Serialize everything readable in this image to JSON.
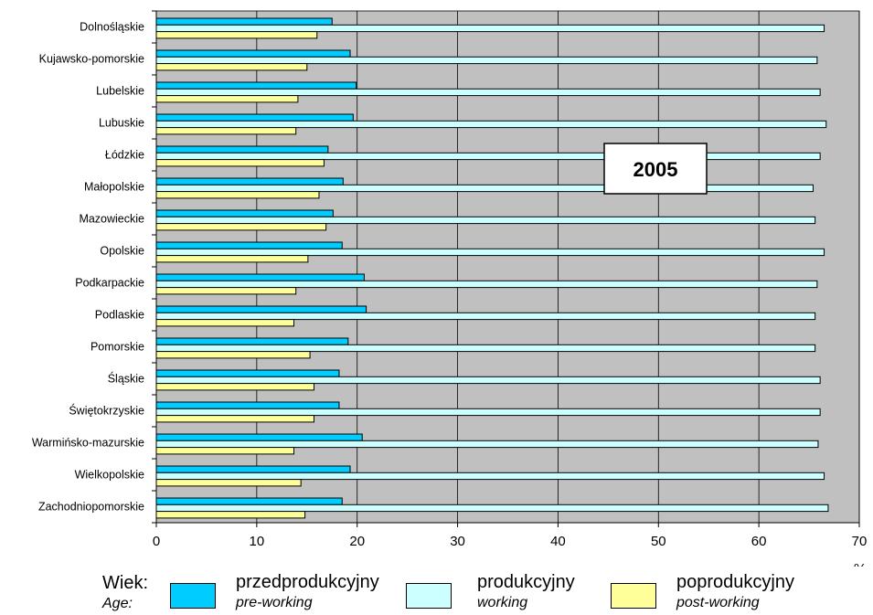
{
  "chart_data": {
    "type": "bar",
    "orientation": "horizontal",
    "categories": [
      "Dolnośląskie",
      "Kujawsko-pomorskie",
      "Lubelskie",
      "Lubuskie",
      "Łódzkie",
      "Małopolskie",
      "Mazowieckie",
      "Opolskie",
      "Podkarpackie",
      "Podlaskie",
      "Pomorskie",
      "Śląskie",
      "Świętokrzyskie",
      "Warmińsko-mazurskie",
      "Wielkopolskie",
      "Zachodniopomorskie"
    ],
    "series": [
      {
        "name": "przedprodukcyjny",
        "name_en": "pre-working",
        "color": "#00ccff",
        "values": [
          17.5,
          19.3,
          19.9,
          19.6,
          17.1,
          18.6,
          17.6,
          18.5,
          20.7,
          20.9,
          19.1,
          18.2,
          18.2,
          20.5,
          19.3,
          18.5
        ]
      },
      {
        "name": "produkcyjny",
        "name_en": "working",
        "color": "#ccffff",
        "values": [
          66.5,
          65.8,
          66.1,
          66.7,
          66.1,
          65.4,
          65.6,
          66.5,
          65.8,
          65.6,
          65.6,
          66.1,
          66.1,
          65.9,
          66.5,
          66.9
        ]
      },
      {
        "name": "poprodukcyjny",
        "name_en": "post-working",
        "color": "#ffff99",
        "values": [
          16.0,
          15.0,
          14.1,
          13.9,
          16.7,
          16.2,
          16.9,
          15.1,
          13.9,
          13.7,
          15.3,
          15.7,
          15.7,
          13.7,
          14.4,
          14.8
        ]
      }
    ],
    "xlim": [
      0,
      70
    ],
    "ticks": [
      0,
      10,
      20,
      30,
      40,
      50,
      60,
      70
    ],
    "xlabel": "%",
    "annotation": "2005",
    "grid": true,
    "plot_bg": "#c0c0c0",
    "legend_title": "Wiek:",
    "legend_title_en": "Age:",
    "legend_position": "bottom"
  }
}
